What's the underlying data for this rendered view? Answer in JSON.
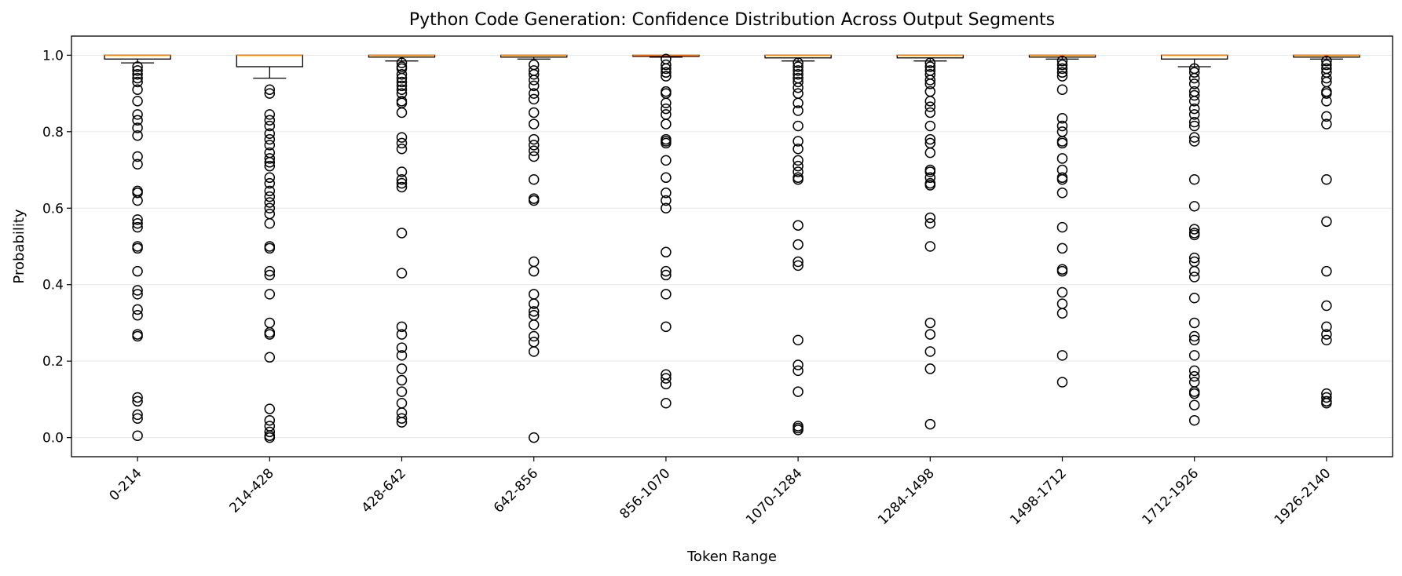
{
  "chart_data": {
    "type": "box",
    "title": "Python Code Generation: Confidence Distribution Across Output Segments",
    "xlabel": "Token Range",
    "ylabel": "Probability",
    "ylim": [
      -0.05,
      1.05
    ],
    "yticks": [
      "0.0",
      "0.2",
      "0.4",
      "0.6",
      "0.8",
      "1.0"
    ],
    "grid": "horizontal",
    "colors": {
      "box": "#000000",
      "median": "#ff7f0e",
      "grid": "#e6e6e6",
      "flier": "#000000"
    },
    "categories": [
      "0-214",
      "214-428",
      "428-642",
      "642-856",
      "856-1070",
      "1070-1284",
      "1284-1498",
      "1498-1712",
      "1712-1926",
      "1926-2140"
    ],
    "boxes": [
      {
        "whisker_low": 0.98,
        "q1": 0.99,
        "median": 1.0,
        "q3": 1.0,
        "whisker_high": 1.0,
        "outliers": [
          0.97,
          0.96,
          0.95,
          0.94,
          0.93,
          0.91,
          0.88,
          0.845,
          0.83,
          0.81,
          0.79,
          0.735,
          0.715,
          0.645,
          0.64,
          0.62,
          0.57,
          0.56,
          0.55,
          0.5,
          0.495,
          0.435,
          0.385,
          0.375,
          0.335,
          0.32,
          0.27,
          0.265,
          0.105,
          0.095,
          0.06,
          0.05,
          0.005
        ]
      },
      {
        "whisker_low": 0.94,
        "q1": 0.97,
        "median": 1.0,
        "q3": 1.0,
        "whisker_high": 1.0,
        "outliers": [
          0.91,
          0.9,
          0.845,
          0.83,
          0.815,
          0.795,
          0.78,
          0.765,
          0.745,
          0.73,
          0.72,
          0.71,
          0.68,
          0.665,
          0.645,
          0.63,
          0.615,
          0.6,
          0.585,
          0.56,
          0.5,
          0.495,
          0.435,
          0.425,
          0.375,
          0.3,
          0.275,
          0.27,
          0.21,
          0.075,
          0.045,
          0.03,
          0.015,
          0.005,
          0.0
        ]
      },
      {
        "whisker_low": 0.985,
        "q1": 0.995,
        "median": 1.0,
        "q3": 1.0,
        "whisker_high": 1.0,
        "outliers": [
          0.98,
          0.97,
          0.965,
          0.95,
          0.94,
          0.93,
          0.92,
          0.91,
          0.9,
          0.88,
          0.875,
          0.85,
          0.785,
          0.77,
          0.755,
          0.695,
          0.675,
          0.665,
          0.655,
          0.535,
          0.43,
          0.29,
          0.27,
          0.235,
          0.215,
          0.18,
          0.15,
          0.12,
          0.09,
          0.065,
          0.05,
          0.04
        ]
      },
      {
        "whisker_low": 0.99,
        "q1": 0.995,
        "median": 1.0,
        "q3": 1.0,
        "whisker_high": 1.0,
        "outliers": [
          0.975,
          0.96,
          0.95,
          0.935,
          0.92,
          0.9,
          0.885,
          0.85,
          0.82,
          0.78,
          0.765,
          0.75,
          0.735,
          0.675,
          0.625,
          0.62,
          0.46,
          0.435,
          0.375,
          0.35,
          0.33,
          0.32,
          0.295,
          0.265,
          0.25,
          0.225,
          0.0
        ]
      },
      {
        "whisker_low": 0.995,
        "q1": 0.997,
        "median": 1.0,
        "q3": 1.0,
        "whisker_high": 1.0,
        "outliers": [
          0.99,
          0.975,
          0.965,
          0.955,
          0.945,
          0.905,
          0.9,
          0.875,
          0.86,
          0.845,
          0.82,
          0.78,
          0.775,
          0.77,
          0.725,
          0.68,
          0.64,
          0.62,
          0.6,
          0.485,
          0.435,
          0.425,
          0.375,
          0.29,
          0.165,
          0.155,
          0.14,
          0.09
        ]
      },
      {
        "whisker_low": 0.985,
        "q1": 0.993,
        "median": 1.0,
        "q3": 1.0,
        "whisker_high": 1.0,
        "outliers": [
          0.98,
          0.97,
          0.96,
          0.95,
          0.94,
          0.93,
          0.915,
          0.9,
          0.875,
          0.855,
          0.815,
          0.775,
          0.755,
          0.725,
          0.71,
          0.695,
          0.68,
          0.675,
          0.555,
          0.505,
          0.46,
          0.45,
          0.255,
          0.19,
          0.175,
          0.12,
          0.03,
          0.025,
          0.02
        ]
      },
      {
        "whisker_low": 0.985,
        "q1": 0.993,
        "median": 1.0,
        "q3": 1.0,
        "whisker_high": 1.0,
        "outliers": [
          0.98,
          0.97,
          0.96,
          0.95,
          0.935,
          0.925,
          0.905,
          0.88,
          0.865,
          0.85,
          0.815,
          0.78,
          0.77,
          0.745,
          0.7,
          0.695,
          0.68,
          0.665,
          0.66,
          0.575,
          0.56,
          0.5,
          0.3,
          0.27,
          0.225,
          0.18,
          0.035
        ]
      },
      {
        "whisker_low": 0.99,
        "q1": 0.995,
        "median": 1.0,
        "q3": 1.0,
        "whisker_high": 1.0,
        "outliers": [
          0.985,
          0.975,
          0.965,
          0.955,
          0.945,
          0.91,
          0.835,
          0.815,
          0.8,
          0.775,
          0.77,
          0.73,
          0.7,
          0.68,
          0.675,
          0.64,
          0.55,
          0.495,
          0.44,
          0.435,
          0.38,
          0.35,
          0.325,
          0.215,
          0.145
        ]
      },
      {
        "whisker_low": 0.97,
        "q1": 0.99,
        "median": 1.0,
        "q3": 1.0,
        "whisker_high": 1.0,
        "outliers": [
          0.965,
          0.955,
          0.94,
          0.925,
          0.905,
          0.895,
          0.88,
          0.86,
          0.845,
          0.825,
          0.815,
          0.785,
          0.775,
          0.675,
          0.605,
          0.545,
          0.535,
          0.53,
          0.47,
          0.46,
          0.435,
          0.42,
          0.365,
          0.3,
          0.265,
          0.255,
          0.215,
          0.175,
          0.16,
          0.145,
          0.12,
          0.115,
          0.085,
          0.045
        ]
      },
      {
        "whisker_low": 0.99,
        "q1": 0.995,
        "median": 1.0,
        "q3": 1.0,
        "whisker_high": 1.0,
        "outliers": [
          0.985,
          0.975,
          0.965,
          0.955,
          0.94,
          0.93,
          0.905,
          0.9,
          0.88,
          0.84,
          0.82,
          0.675,
          0.565,
          0.435,
          0.345,
          0.29,
          0.27,
          0.255,
          0.115,
          0.105,
          0.095,
          0.09
        ]
      }
    ]
  }
}
